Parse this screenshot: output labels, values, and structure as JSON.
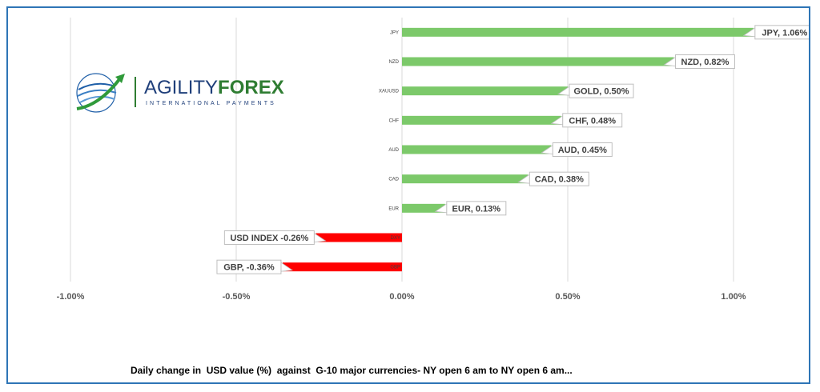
{
  "chart_data": {
    "type": "bar",
    "orientation": "horizontal",
    "categories": [
      "JPY",
      "NZD",
      "XAUUSD",
      "CHF",
      "AUD",
      "CAD",
      "EUR",
      "DXY",
      "GBP"
    ],
    "values": [
      1.06,
      0.82,
      0.5,
      0.48,
      0.45,
      0.38,
      0.13,
      -0.26,
      -0.36
    ],
    "data_labels": [
      "JPY, 1.06%",
      "NZD, 0.82%",
      "GOLD, 0.50%",
      "CHF, 0.48%",
      "AUD, 0.45%",
      "CAD, 0.38%",
      "EUR, 0.13%",
      "USD INDEX -0.26%",
      "GBP, -0.36%"
    ],
    "xlim": [
      -1.0,
      1.0
    ],
    "x_ticks": [
      "-1.00%",
      "-0.50%",
      "0.00%",
      "0.50%",
      "1.00%"
    ],
    "x_tick_values": [
      -1.0,
      -0.5,
      0.0,
      0.5,
      1.0
    ],
    "grid": true,
    "colors": {
      "positive": "#7cc96a",
      "negative": "#ff0000",
      "grid": "#d9d9d9",
      "frame": "#2e75b6"
    }
  },
  "caption": "Daily change in  USD value (%)  against  G-10 major currencies- NY open 6 am to NY open 6 am...",
  "logo": {
    "word1": "AGILITY",
    "word2": "FOREX",
    "subtitle": "INTERNATIONAL PAYMENTS"
  }
}
